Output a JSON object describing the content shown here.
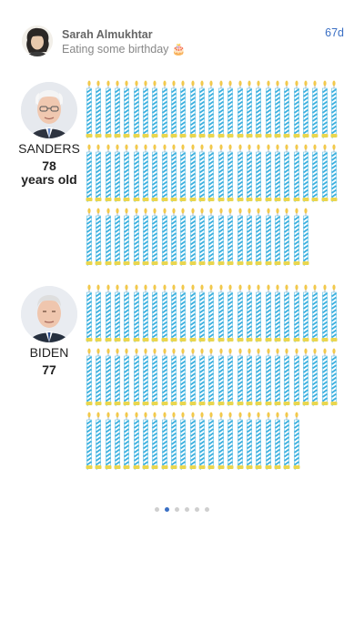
{
  "post": {
    "author": "Sarah Almukhtar",
    "status": "Eating some birthday 🎂",
    "age": "67d"
  },
  "people": [
    {
      "name": "SANDERS",
      "age": "78",
      "age_suffix": "years old",
      "candles": 78
    },
    {
      "name": "BIDEN",
      "age": "77",
      "age_suffix": "",
      "candles": 77
    }
  ],
  "candle_colors": {
    "stripe": "#3bb0df",
    "body": "#ffffff",
    "flame": "#f2c94c",
    "base": "#e9d64f"
  },
  "pager": {
    "count": 6,
    "active_index": 1
  }
}
